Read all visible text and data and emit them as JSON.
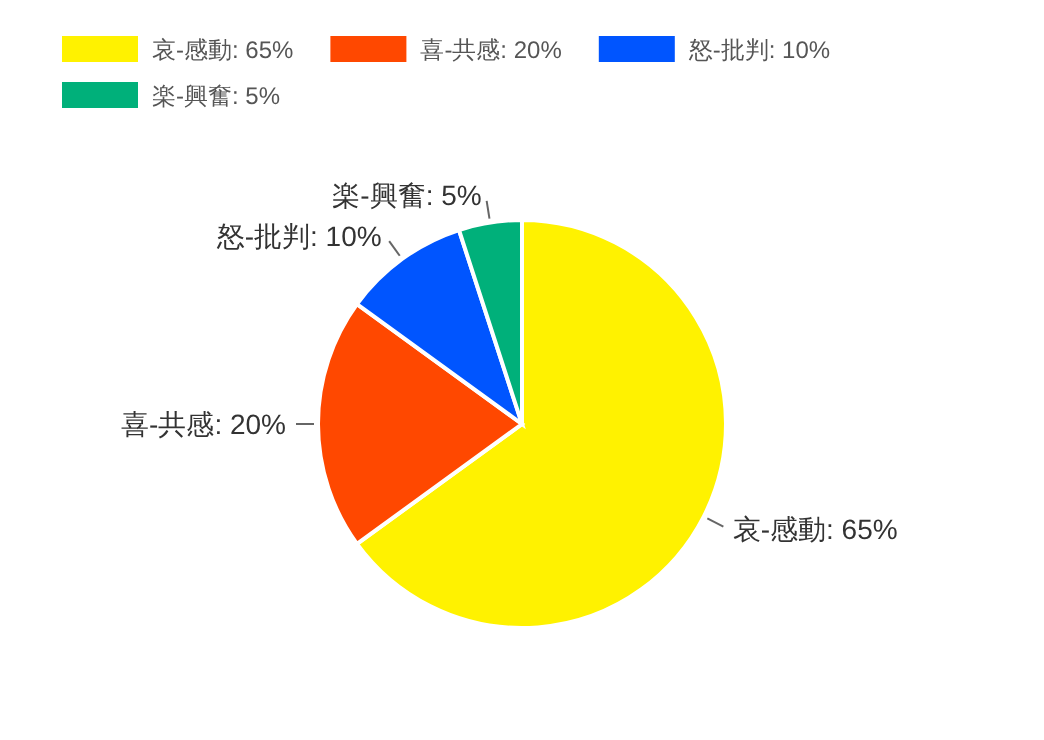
{
  "chart_data": {
    "type": "pie",
    "categories": [
      "哀-感動: 65%",
      "喜-共感: 20%",
      "怒-批判: 10%",
      "楽-興奮: 5%"
    ],
    "values": [
      65,
      20,
      10,
      5
    ],
    "colors": [
      "#fff200",
      "#ff4800",
      "#0055ff",
      "#00b07a"
    ],
    "legend": "top left"
  }
}
